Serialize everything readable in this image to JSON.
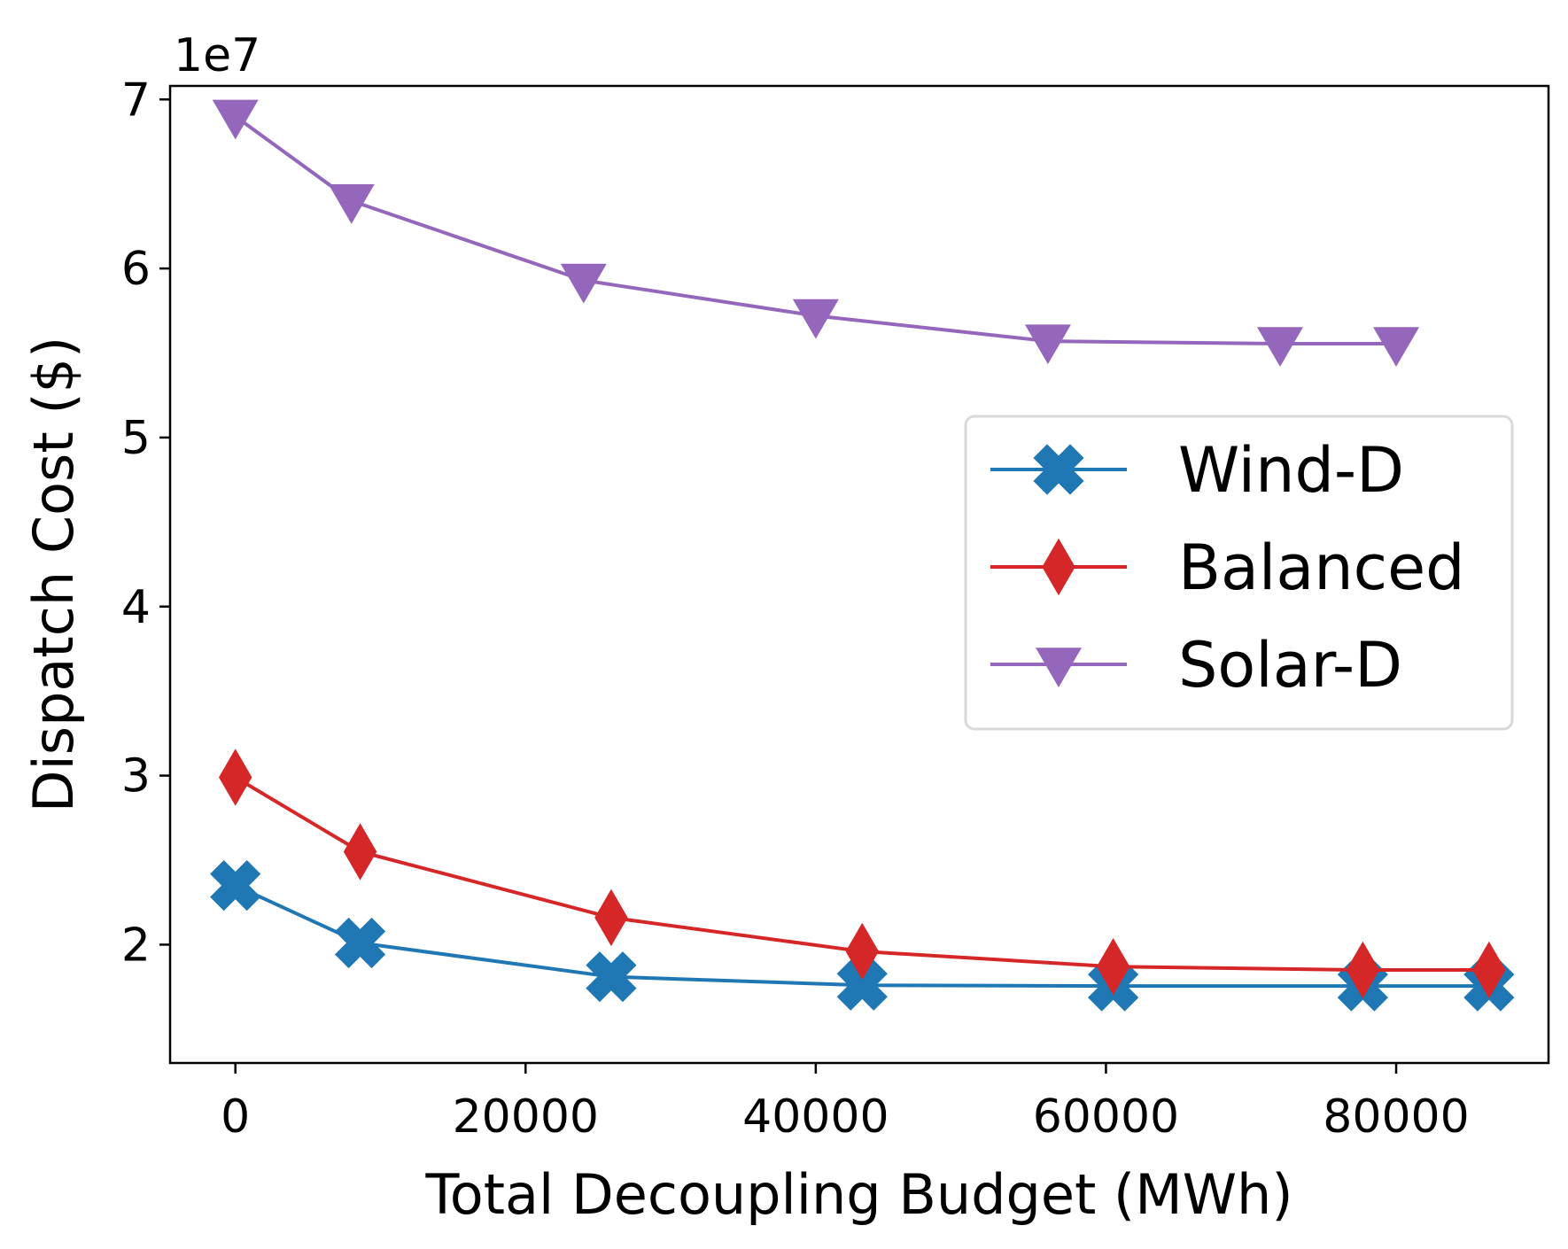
{
  "chart_data": {
    "type": "line",
    "title": "",
    "xlabel": "Total Decoupling Budget (MWh)",
    "ylabel": "Dispatch Cost ($)",
    "y_offset_label": "1e7",
    "xlim": [
      -4500,
      90500
    ],
    "ylim": [
      1.3,
      7.08
    ],
    "x_ticks": [
      0,
      20000,
      40000,
      60000,
      80000
    ],
    "x_tick_labels": [
      "0",
      "20000",
      "40000",
      "60000",
      "80000"
    ],
    "y_ticks": [
      2,
      3,
      4,
      5,
      6,
      7
    ],
    "y_tick_labels": [
      "2",
      "3",
      "4",
      "5",
      "6",
      "7"
    ],
    "grid": false,
    "legend_position": "center-right",
    "series": [
      {
        "name": "Wind-D",
        "color": "#1f77b4",
        "marker": "x-filled",
        "x": [
          0,
          8600,
          25900,
          43200,
          60500,
          77700,
          86400
        ],
        "y": [
          2.35,
          2.01,
          1.81,
          1.76,
          1.755,
          1.755,
          1.755
        ]
      },
      {
        "name": "Balanced",
        "color": "#d62728",
        "marker": "thin-diamond",
        "x": [
          0,
          8600,
          25900,
          43200,
          60500,
          77700,
          86400
        ],
        "y": [
          2.99,
          2.55,
          2.16,
          1.96,
          1.87,
          1.85,
          1.85
        ]
      },
      {
        "name": "Solar-D",
        "color": "#9467bd",
        "marker": "triangle-down",
        "x": [
          0,
          8000,
          24000,
          40000,
          56000,
          72000,
          80000
        ],
        "y": [
          6.9,
          6.4,
          5.93,
          5.72,
          5.57,
          5.555,
          5.555
        ]
      }
    ]
  }
}
